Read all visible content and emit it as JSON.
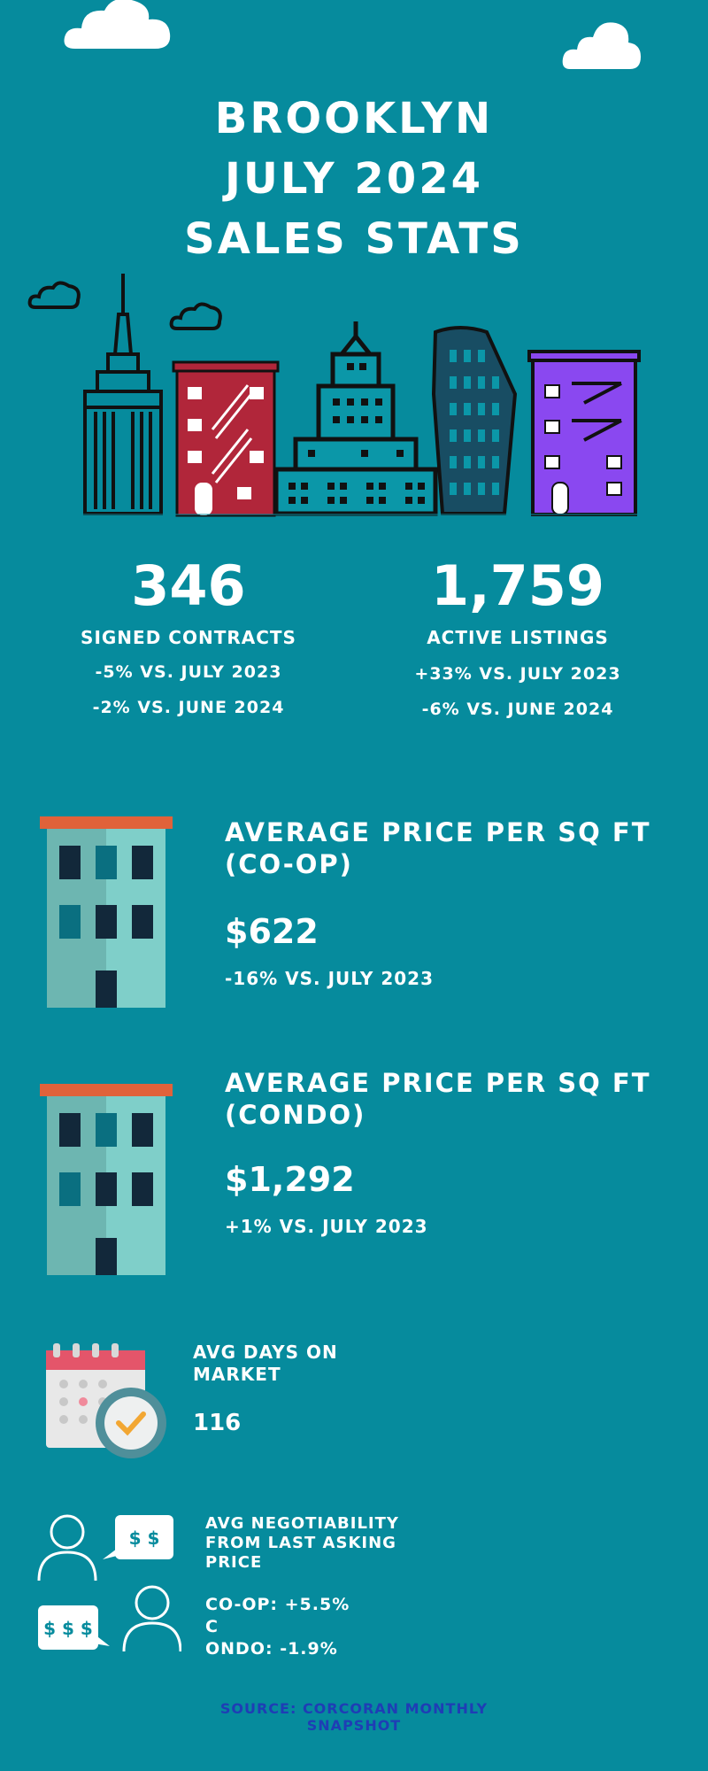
{
  "header": {
    "title_lines": [
      "BROOKLYN",
      "JULY 2024",
      "SALES STATS"
    ]
  },
  "stats": {
    "signed": {
      "value": "346",
      "label": "SIGNED CONTRACTS",
      "yoy": "-5% VS. JULY 2023",
      "mom": "-2% VS. JUNE 2024"
    },
    "active": {
      "value": "1,759",
      "label": "ACTIVE LISTINGS",
      "yoy": "+33% VS. JULY 2023",
      "mom": "-6% VS. JUNE 2024"
    }
  },
  "coop": {
    "title_line1": "AVERAGE PRICE PER SQ FT",
    "title_line2": "(CO-OP)",
    "value": "$622",
    "change": "-16% VS. JULY 2023"
  },
  "condo": {
    "title_line1": "AVERAGE PRICE PER SQ FT",
    "title_line2": "(CONDO)",
    "value": "$1,292",
    "change": "+1% VS. JULY 2023"
  },
  "days": {
    "title_line1": "AVG DAYS ON",
    "title_line2": "MARKET",
    "value": "116"
  },
  "negotiability": {
    "title_line1": "AVG NEGOTIABILITY",
    "title_line2": "FROM LAST ASKING",
    "title_line3": "PRICE",
    "line1": "CO-OP: +5.5%",
    "line2": "C",
    "line3": "ONDO: -1.9%",
    "bubble_small": "$ $",
    "bubble_large": "$ $ $"
  },
  "source": {
    "line1": "SOURCE: CORCORAN MONTHLY",
    "line2": "SNAPSHOT"
  },
  "colors": {
    "background": "#068b9d",
    "source_text": "#1f3db5",
    "red_building": "#b1263a",
    "purple_building": "#8a48f0",
    "roof_orange": "#e0623a"
  },
  "icons": [
    "cloud-icon",
    "skyline-illustration",
    "apartment-building-icon",
    "calendar-clock-icon",
    "person-speech-icon"
  ]
}
